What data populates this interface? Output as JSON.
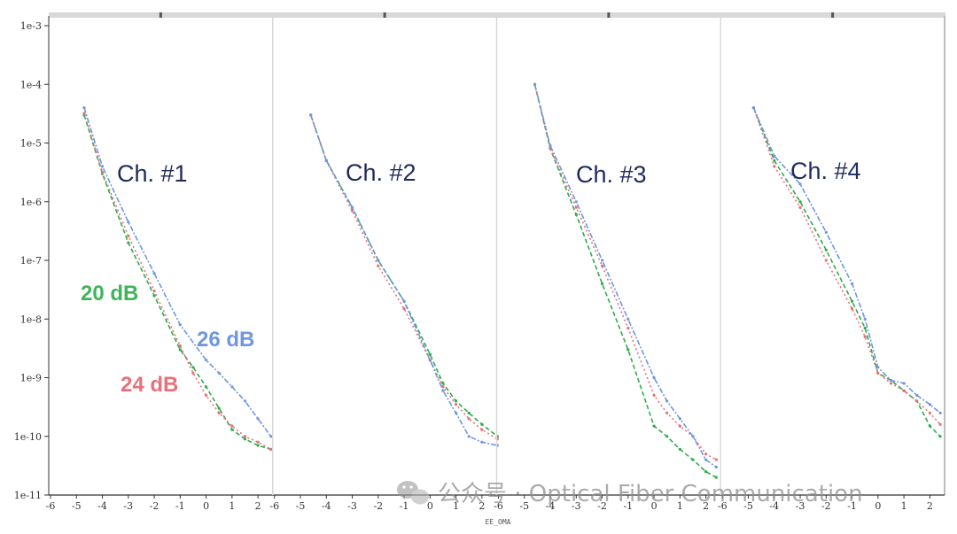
{
  "chart_data": {
    "type": "line",
    "y_scale": "log",
    "ylim": [
      1e-11,
      0.001
    ],
    "xlim": [
      -6,
      2.5
    ],
    "y_tick_labels": [
      "1e-3",
      "1e-4",
      "1e-5",
      "1e-6",
      "1e-7",
      "1e-8",
      "1e-9",
      "1e-10",
      "1e-11"
    ],
    "x_tick_labels": [
      "-6",
      "-5",
      "-4",
      "-3",
      "-2",
      "-1",
      "0",
      "1",
      "2"
    ],
    "xlabel": "EE_OMA",
    "colors": {
      "20 dB": "#2eab4a",
      "24 dB": "#e8707a",
      "26 dB": "#6f96e0"
    },
    "annotations": [
      {
        "text": "20 dB",
        "panel": 0,
        "color": "#3fb45a"
      },
      {
        "text": "24 dB",
        "panel": 0,
        "color": "#e8707a"
      },
      {
        "text": "26 dB",
        "panel": 0,
        "color": "#6f96e0"
      }
    ],
    "panels": [
      {
        "title": "Ch. #1",
        "series": [
          {
            "name": "20 dB",
            "x": [
              -4.7,
              -4,
              -3,
              -2,
              -1,
              -0.5,
              0,
              0.5,
              1,
              1.5,
              2,
              2.5
            ],
            "y": [
              3e-05,
              3e-06,
              2e-07,
              2.5e-08,
              3e-09,
              1.5e-09,
              7e-10,
              3e-10,
              1.3e-10,
              9e-11,
              7e-11,
              6e-11
            ]
          },
          {
            "name": "24 dB",
            "x": [
              -4.7,
              -4,
              -3,
              -2,
              -1,
              -0.5,
              0,
              0.5,
              1,
              1.5,
              2,
              2.5
            ],
            "y": [
              3.2e-05,
              3.2e-06,
              2.6e-07,
              3e-08,
              3.5e-09,
              1.2e-09,
              5e-10,
              2.5e-10,
              1.5e-10,
              1e-10,
              8e-11,
              6e-11
            ]
          },
          {
            "name": "26 dB",
            "x": [
              -4.7,
              -4,
              -3,
              -2,
              -1,
              0,
              0.5,
              1,
              1.5,
              2,
              2.5
            ],
            "y": [
              4e-05,
              4e-06,
              4.5e-07,
              6e-08,
              8e-09,
              2e-09,
              1.2e-09,
              7e-10,
              4e-10,
              2e-10,
              1e-10
            ]
          }
        ]
      },
      {
        "title": "Ch. #2",
        "series": [
          {
            "name": "20 dB",
            "x": [
              -4.6,
              -4,
              -3,
              -2,
              -1,
              0,
              0.5,
              1,
              1.5,
              2,
              2.6
            ],
            "y": [
              3e-05,
              5e-06,
              8e-07,
              1e-07,
              2e-08,
              2.5e-09,
              8e-10,
              4e-10,
              2.5e-10,
              1.6e-10,
              1e-10
            ]
          },
          {
            "name": "24 dB",
            "x": [
              -4.6,
              -4,
              -3,
              -2,
              -1,
              0,
              0.5,
              1,
              1.5,
              2,
              2.6
            ],
            "y": [
              3e-05,
              5e-06,
              7e-07,
              8e-08,
              1.5e-08,
              2e-09,
              7e-10,
              3.5e-10,
              2e-10,
              1.3e-10,
              9e-11
            ]
          },
          {
            "name": "26 dB",
            "x": [
              -4.6,
              -4,
              -3,
              -2,
              -1,
              0,
              0.5,
              1,
              1.5,
              2,
              2.6
            ],
            "y": [
              3e-05,
              5e-06,
              8e-07,
              1e-07,
              2e-08,
              2e-09,
              6e-10,
              2.5e-10,
              1e-10,
              8e-11,
              7e-11
            ]
          }
        ]
      },
      {
        "title": "Ch. #3",
        "series": [
          {
            "name": "20 dB",
            "x": [
              -4.6,
              -4,
              -3,
              -2,
              -1,
              0,
              0.5,
              1,
              1.5,
              2,
              2.4
            ],
            "y": [
              0.0001,
              8e-06,
              6e-07,
              4e-08,
              3e-09,
              1.5e-10,
              1e-10,
              6e-11,
              4e-11,
              2.5e-11,
              2e-11
            ]
          },
          {
            "name": "24 dB",
            "x": [
              -4.6,
              -4,
              -3,
              -2,
              -1,
              0,
              0.5,
              1,
              1.5,
              2,
              2.4
            ],
            "y": [
              0.0001,
              8e-06,
              8e-07,
              8e-08,
              7e-09,
              5e-10,
              2.5e-10,
              1.5e-10,
              1e-10,
              5e-11,
              4e-11
            ]
          },
          {
            "name": "26 dB",
            "x": [
              -4.6,
              -4,
              -3,
              -2,
              -1,
              0,
              0.5,
              1,
              1.5,
              2,
              2.4
            ],
            "y": [
              0.0001,
              9e-06,
              1e-06,
              1e-07,
              1e-08,
              1e-09,
              4e-10,
              2e-10,
              1e-10,
              4e-11,
              3e-11
            ]
          }
        ]
      },
      {
        "title": "Ch. #4",
        "series": [
          {
            "name": "20 dB",
            "x": [
              -4.8,
              -4,
              -3,
              -2,
              -1,
              -0.5,
              0,
              0.5,
              1,
              1.5,
              2,
              2.4
            ],
            "y": [
              4e-05,
              5e-06,
              1e-06,
              1.5e-07,
              2e-08,
              7e-09,
              1.2e-09,
              9e-10,
              6e-10,
              4e-10,
              1.5e-10,
              1e-10
            ]
          },
          {
            "name": "24 dB",
            "x": [
              -4.8,
              -4,
              -3,
              -2,
              -1,
              -0.5,
              0,
              0.5,
              1,
              1.5,
              2,
              2.4
            ],
            "y": [
              4e-05,
              4e-06,
              8e-07,
              1e-07,
              1.5e-08,
              5e-09,
              1.2e-09,
              8e-10,
              6e-10,
              4e-10,
              2.5e-10,
              1.6e-10
            ]
          },
          {
            "name": "26 dB",
            "x": [
              -4.8,
              -4,
              -3,
              -2,
              -1,
              -0.5,
              0,
              0.5,
              1,
              1.5,
              2,
              2.4
            ],
            "y": [
              4e-05,
              6e-06,
              2e-06,
              3e-07,
              4e-08,
              1e-08,
              1.5e-09,
              9e-10,
              8e-10,
              5e-10,
              3.5e-10,
              2.5e-10
            ]
          }
        ]
      }
    ]
  },
  "watermark": {
    "icon": "wechat-icon",
    "text": "公众号 · Optical Fiber Communication"
  }
}
